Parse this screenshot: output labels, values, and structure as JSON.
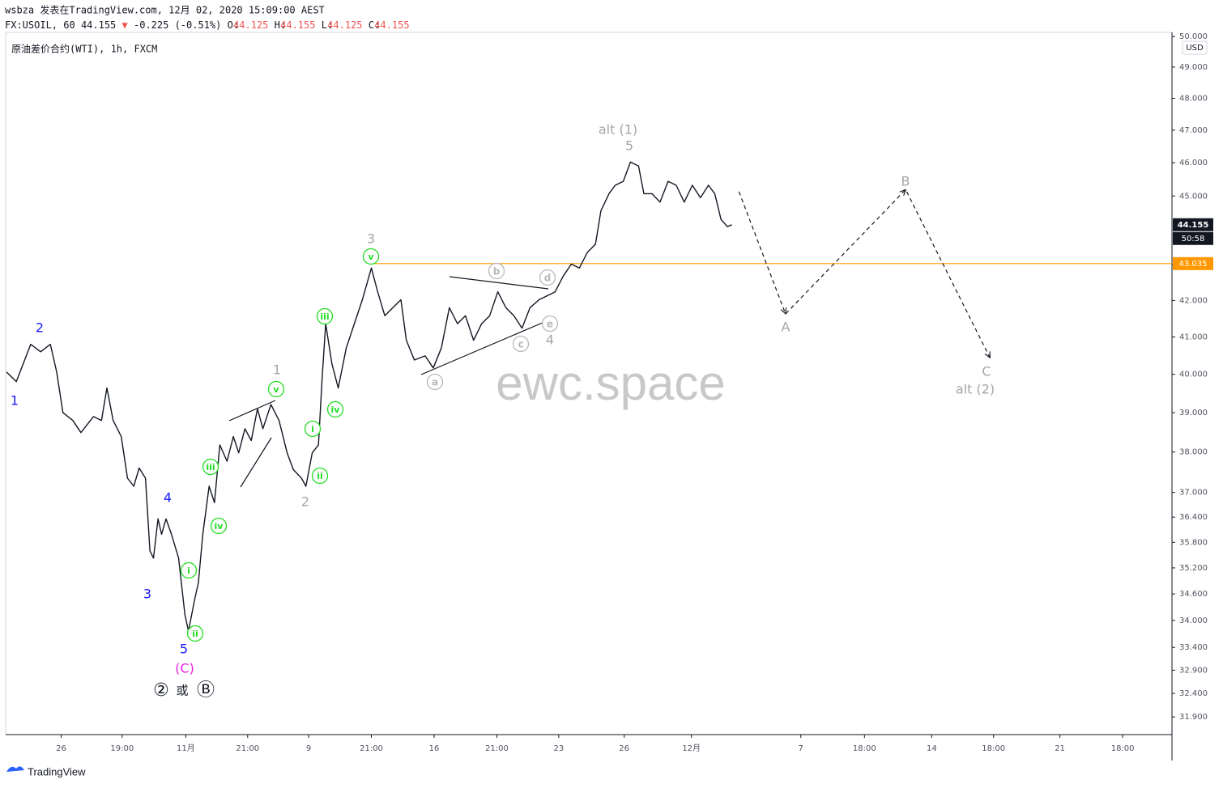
{
  "header": {
    "line1": "wsbza 发表在TradingView.com, 12月 02, 2020 15:09:00 AEST",
    "symbol": "FX:USOIL, 60",
    "last": "44.155",
    "arrow": "▼",
    "change": "-0.225 (-0.51%)",
    "ohlc": [
      {
        "key": "O:",
        "value": "44.125"
      },
      {
        "key": "H:",
        "value": "44.155"
      },
      {
        "key": "L:",
        "value": "44.125"
      },
      {
        "key": "C:",
        "value": "44.155"
      }
    ],
    "instrument": "原油差价合约(WTI), 1h, FXCM"
  },
  "chart_data": {
    "type": "line",
    "log": true,
    "currency": "USD",
    "xlim": [
      0,
      1300
    ],
    "ylim": [
      31.53,
      50.19
    ],
    "yticks": [
      {
        "value": 31.9,
        "label": "31.900"
      },
      {
        "value": 32.4,
        "label": "32.400"
      },
      {
        "value": 32.9,
        "label": "32.900"
      },
      {
        "value": 33.4,
        "label": "33.400"
      },
      {
        "value": 34,
        "label": "34.000"
      },
      {
        "value": 34.6,
        "label": "34.600"
      },
      {
        "value": 35.2,
        "label": "35.200"
      },
      {
        "value": 35.8,
        "label": "35.800"
      },
      {
        "value": 36.4,
        "label": "36.400"
      },
      {
        "value": 37,
        "label": "37.000"
      },
      {
        "value": 38,
        "label": "38.000"
      },
      {
        "value": 39,
        "label": "39.000"
      },
      {
        "value": 40,
        "label": "40.000"
      },
      {
        "value": 41,
        "label": "41.000"
      },
      {
        "value": 42,
        "label": "42.000"
      },
      {
        "value": 43,
        "label": "43.000"
      },
      {
        "value": 45,
        "label": "45.000"
      },
      {
        "value": 46,
        "label": "46.000"
      },
      {
        "value": 47,
        "label": "47.000"
      },
      {
        "value": 48,
        "label": "48.000"
      },
      {
        "value": 49,
        "label": "49.000"
      },
      {
        "value": 50,
        "label": "50.000"
      }
    ],
    "xticks": [
      {
        "value": 61,
        "label": "26"
      },
      {
        "value": 129,
        "label": "19:00"
      },
      {
        "value": 200,
        "label": "11月"
      },
      {
        "value": 269,
        "label": "21:00"
      },
      {
        "value": 337,
        "label": "9"
      },
      {
        "value": 407,
        "label": "21:00"
      },
      {
        "value": 477,
        "label": "16"
      },
      {
        "value": 547,
        "label": "21:00"
      },
      {
        "value": 616,
        "label": "23"
      },
      {
        "value": 689,
        "label": "26"
      },
      {
        "value": 764,
        "label": "12月"
      },
      {
        "value": 886,
        "label": "7"
      },
      {
        "value": 957,
        "label": "18:00"
      },
      {
        "value": 1032,
        "label": "14"
      },
      {
        "value": 1101,
        "label": "18:00"
      },
      {
        "value": 1175,
        "label": "21"
      },
      {
        "value": 1245,
        "label": "18:00"
      }
    ],
    "series": [
      {
        "name": "USOIL",
        "color": "#131722",
        "x": [
          0,
          11,
          27,
          38,
          49,
          56,
          63,
          74,
          83,
          97,
          106,
          112,
          119,
          128,
          135,
          142,
          148,
          155,
          160,
          164,
          169,
          173,
          178,
          184,
          192,
          199,
          203,
          210,
          214,
          219,
          226,
          232,
          238,
          246,
          253,
          259,
          266,
          273,
          280,
          286,
          295,
          304,
          313,
          320,
          329,
          334,
          341,
          348,
          352,
          356,
          363,
          370,
          379,
          388,
          397,
          407,
          414,
          422,
          431,
          440,
          446,
          455,
          467,
          476,
          485,
          494,
          503,
          512,
          521,
          530,
          539,
          548,
          557,
          566,
          575,
          584,
          594,
          603,
          612,
          621,
          630,
          639,
          648,
          657,
          663,
          672,
          679,
          688,
          696,
          705,
          711,
          720,
          729,
          738,
          747,
          756,
          765,
          774,
          783,
          790,
          797,
          804,
          809
        ],
        "values": [
          40.06,
          39.81,
          40.8,
          40.6,
          40.8,
          40.06,
          39.0,
          38.8,
          38.49,
          38.9,
          38.8,
          39.64,
          38.8,
          38.39,
          37.35,
          37.15,
          37.6,
          37.35,
          35.6,
          35.43,
          36.36,
          35.99,
          36.36,
          35.99,
          35.43,
          34.13,
          33.76,
          34.49,
          34.85,
          35.99,
          37.15,
          36.75,
          38.18,
          37.77,
          38.39,
          37.98,
          38.59,
          38.29,
          39.1,
          38.59,
          39.21,
          38.8,
          37.98,
          37.56,
          37.35,
          37.15,
          37.98,
          38.18,
          39.85,
          41.36,
          40.28,
          39.64,
          40.7,
          41.36,
          42.02,
          42.91,
          42.24,
          41.58,
          41.8,
          42.02,
          40.91,
          40.38,
          40.49,
          40.17,
          40.7,
          41.8,
          41.36,
          41.58,
          40.91,
          41.36,
          41.58,
          42.24,
          41.8,
          41.58,
          41.24,
          41.8,
          42.02,
          42.13,
          42.24,
          42.68,
          43.02,
          42.91,
          43.36,
          43.59,
          44.56,
          45.07,
          45.32,
          45.44,
          46.02,
          45.9,
          45.07,
          45.07,
          44.82,
          45.44,
          45.32,
          44.82,
          45.32,
          44.95,
          45.32,
          45.07,
          44.31,
          44.1,
          44.155
        ]
      },
      {
        "name": "projection",
        "color": "#131722",
        "dashed": true,
        "x": [
          817,
          869,
          1003,
          1097
        ],
        "values": [
          45.13,
          41.63,
          45.19,
          40.44
        ]
      }
    ],
    "hline": {
      "value": 43.035,
      "color": "#ff9800"
    },
    "last_price": 44.155,
    "countdown": "50:58",
    "wave_labels": {
      "blue": [
        "1",
        "2",
        "3",
        "4",
        "5"
      ],
      "magenta": "(C)",
      "black": [
        "②",
        "或",
        "Ⓑ"
      ],
      "green": [
        "i",
        "ii",
        "iii",
        "iv",
        "v",
        "i",
        "ii",
        "iii",
        "iv",
        "v"
      ],
      "gray": [
        "1",
        "2",
        "3",
        "4",
        "5",
        "alt (1)",
        "A",
        "B",
        "C",
        "alt (2)"
      ],
      "circled_gray": [
        "a",
        "b",
        "c",
        "d",
        "e"
      ]
    },
    "watermark": "ewc.space"
  },
  "footer": {
    "brand": "TradingView"
  }
}
